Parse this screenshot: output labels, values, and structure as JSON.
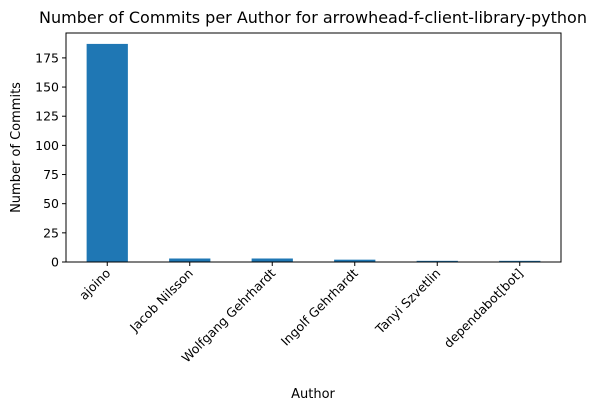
{
  "chart_data": {
    "type": "bar",
    "title": "Number of Commits per Author for arrowhead-f-client-library-python",
    "xlabel": "Author",
    "ylabel": "Number of Commits",
    "categories": [
      "ajoino",
      "Jacob Nilsson",
      "Wolfgang Gehrhardt",
      "Ingolf Gehrhardt",
      "Tanyi Szvetlin",
      "dependabot[bot]"
    ],
    "values": [
      187,
      3,
      3,
      2,
      1,
      1
    ],
    "ylim": [
      0,
      196.35
    ],
    "yticks": [
      0,
      25,
      50,
      75,
      100,
      125,
      150,
      175
    ],
    "grid": false,
    "legend": "none",
    "bar_color": "#1f77b4"
  }
}
